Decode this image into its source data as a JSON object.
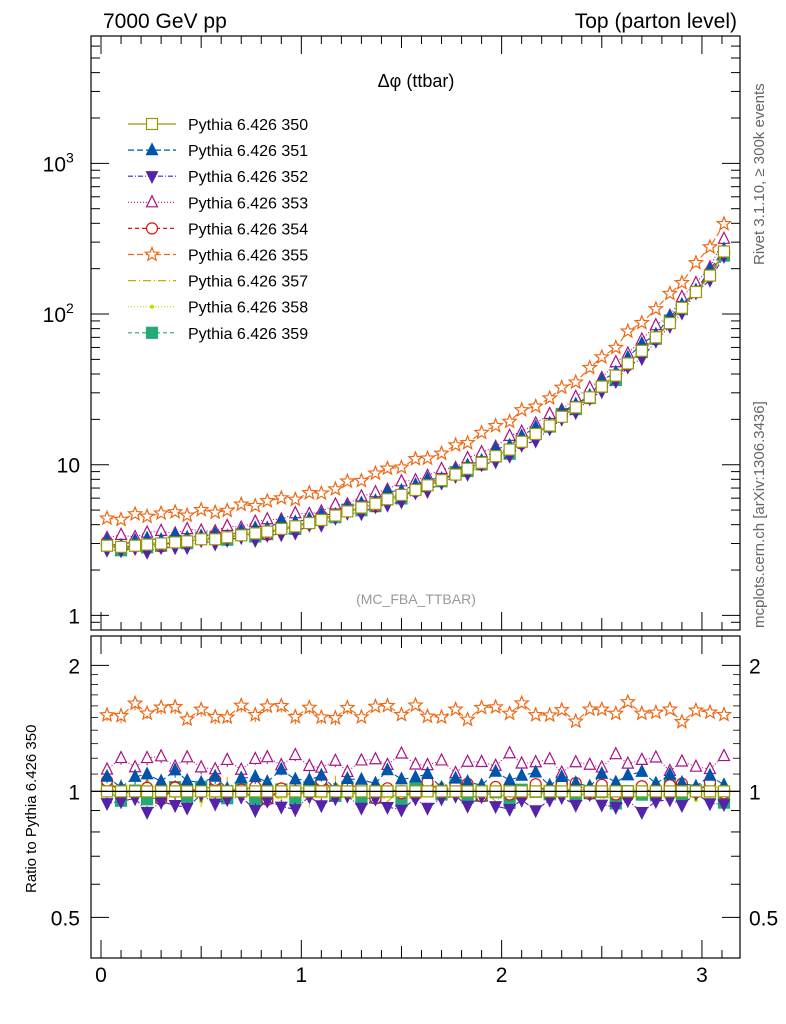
{
  "header": {
    "left": "7000 GeV pp",
    "right": "Top (parton level)"
  },
  "side_labels": {
    "rivet": "Rivet 3.1.10, ≥ 300k events",
    "mcplots": "mcplots.cern.ch [arXiv:1306.3436]"
  },
  "chart_data": [
    {
      "type": "line",
      "title": "Δφ (ttbar)",
      "annotation": "(MC_FBA_TTBAR)",
      "xlim": [
        -0.05,
        3.19
      ],
      "ylim": [
        0.8,
        7000
      ],
      "log_y": true,
      "y_ticks": [
        {
          "value": 1,
          "label": "1"
        },
        {
          "value": 10,
          "label": "10"
        },
        {
          "value": 100,
          "label": "10",
          "sup": "2"
        },
        {
          "value": 1000,
          "label": "10",
          "sup": "3"
        }
      ],
      "legend_position": "top-left",
      "x": [
        0.03,
        0.1,
        0.17,
        0.23,
        0.3,
        0.37,
        0.43,
        0.5,
        0.57,
        0.63,
        0.7,
        0.77,
        0.83,
        0.9,
        0.97,
        1.04,
        1.1,
        1.17,
        1.23,
        1.3,
        1.37,
        1.43,
        1.5,
        1.57,
        1.63,
        1.7,
        1.77,
        1.83,
        1.9,
        1.97,
        2.04,
        2.1,
        2.17,
        2.24,
        2.3,
        2.37,
        2.44,
        2.5,
        2.57,
        2.63,
        2.7,
        2.77,
        2.84,
        2.9,
        2.97,
        3.04,
        3.11
      ],
      "reference": [
        2.9,
        2.85,
        2.9,
        2.95,
        3.0,
        3.05,
        3.1,
        3.2,
        3.2,
        3.3,
        3.4,
        3.5,
        3.6,
        3.75,
        3.9,
        4.1,
        4.3,
        4.6,
        4.9,
        5.2,
        5.5,
        5.9,
        6.3,
        6.8,
        7.3,
        7.9,
        8.6,
        9.4,
        10.3,
        11.4,
        12.6,
        14.2,
        16.0,
        18.2,
        20.8,
        24.0,
        28.0,
        33.0,
        39.0,
        47.0,
        57.0,
        70.0,
        87.0,
        110.0,
        140.0,
        180.0,
        260.0
      ],
      "series": [
        {
          "name": "Pythia 6.426 350",
          "color": "#999900",
          "marker": "square-open",
          "dash": "solid",
          "scale": 1.0
        },
        {
          "name": "Pythia 6.426 351",
          "color": "#0055aa",
          "marker": "triangle-up-filled",
          "dash": "6,3",
          "scale": 1.07
        },
        {
          "name": "Pythia 6.426 352",
          "color": "#5522aa",
          "marker": "triangle-down-filled",
          "dash": "5,2,1,2",
          "scale": 0.94
        },
        {
          "name": "Pythia 6.426 353",
          "color": "#aa1188",
          "marker": "triangle-up-open",
          "dash": "1,2",
          "scale": 1.17
        },
        {
          "name": "Pythia 6.426 354",
          "color": "#dd1111",
          "marker": "circle-open",
          "dash": "4,3",
          "scale": 1.01
        },
        {
          "name": "Pythia 6.426 355",
          "color": "#ee6611",
          "marker": "star-open",
          "dash": "6,3",
          "scale": 1.55
        },
        {
          "name": "Pythia 6.426 357",
          "color": "#ccaa00",
          "marker": "none",
          "dash": "8,3,1,3",
          "scale": 1.0
        },
        {
          "name": "Pythia 6.426 358",
          "color": "#bbdd00",
          "marker": "dot",
          "dash": "1,2",
          "scale": 1.0
        },
        {
          "name": "Pythia 6.426 359",
          "color": "#22aa77",
          "marker": "square-filled",
          "dash": "4,3",
          "scale": 0.99
        }
      ]
    },
    {
      "type": "line",
      "ylabel": "Ratio to Pythia 6.426 350",
      "xlim": [
        -0.05,
        3.19
      ],
      "ylim": [
        0.4,
        2.35
      ],
      "log_y": true,
      "x_ticks": [
        {
          "value": 0,
          "label": "0"
        },
        {
          "value": 1,
          "label": "1"
        },
        {
          "value": 2,
          "label": "2"
        },
        {
          "value": 3,
          "label": "3"
        }
      ],
      "y_ticks": [
        {
          "value": 0.5,
          "label": "0.5"
        },
        {
          "value": 1,
          "label": "1"
        },
        {
          "value": 2,
          "label": "2"
        }
      ],
      "band_color": "#e6f07a"
    }
  ]
}
